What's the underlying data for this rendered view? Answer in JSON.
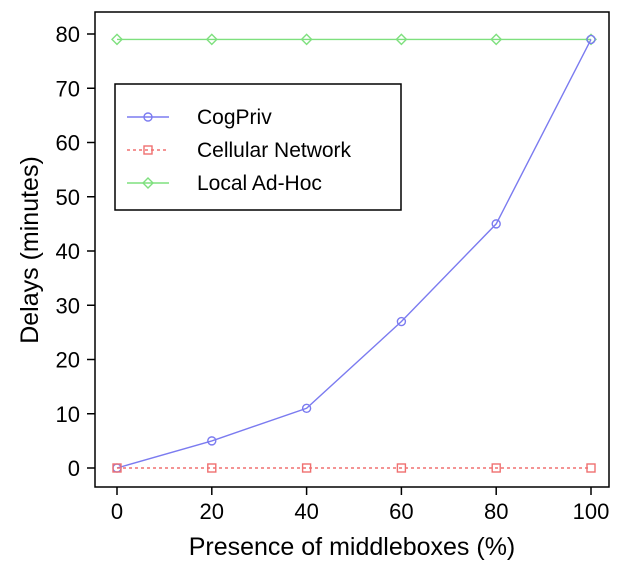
{
  "chart_data": {
    "type": "line",
    "title": "",
    "xlabel": "Presence of middleboxes (%)",
    "ylabel": "Delays (minutes)",
    "x": [
      0,
      20,
      40,
      60,
      80,
      100
    ],
    "xlim": [
      0,
      100
    ],
    "ylim": [
      0,
      80
    ],
    "xticks": [
      "0",
      "20",
      "40",
      "60",
      "80",
      "100"
    ],
    "yticks": [
      "0",
      "10",
      "20",
      "30",
      "40",
      "50",
      "60",
      "70",
      "80"
    ],
    "grid": false,
    "legend_position": "top-left",
    "series": [
      {
        "name": "CogPriv",
        "values": [
          0,
          5,
          11,
          27,
          45,
          79
        ],
        "color": "#7b7bf0",
        "marker": "circle",
        "dash": "solid"
      },
      {
        "name": "Cellular Network",
        "values": [
          0,
          0,
          0,
          0,
          0,
          0
        ],
        "color": "#f07070",
        "marker": "square",
        "dash": "dotted"
      },
      {
        "name": "Local Ad-Hoc",
        "values": [
          79,
          79,
          79,
          79,
          79,
          79
        ],
        "color": "#7ee07e",
        "marker": "diamond",
        "dash": "solid"
      }
    ]
  }
}
